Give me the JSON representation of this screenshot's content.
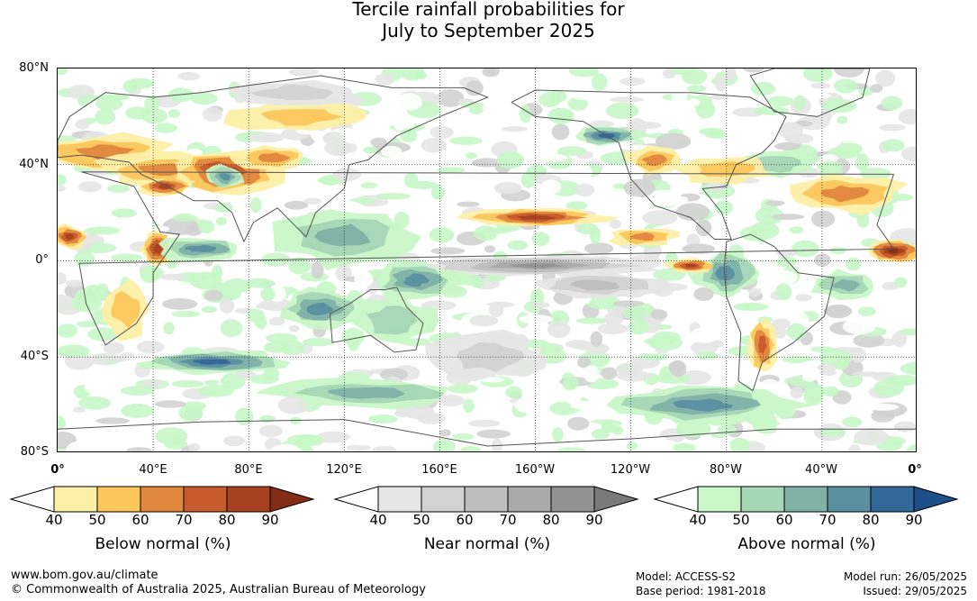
{
  "title": {
    "line1": "Tercile rainfall probabilities for",
    "line2": "July to September 2025"
  },
  "map": {
    "lat_labels": [
      "80°N",
      "40°N",
      "0°",
      "40°S",
      "80°S"
    ],
    "lon_labels": [
      "0°",
      "40°E",
      "80°E",
      "120°E",
      "160°E",
      "160°W",
      "120°W",
      "80°W",
      "40°W",
      "0°"
    ],
    "colors": {
      "below": [
        "#fdefa6",
        "#fcc65d",
        "#e0883e",
        "#c85b2b",
        "#a7411f",
        "#842d16"
      ],
      "near": [
        "#e6e6e6",
        "#d2d2d2",
        "#bebebe",
        "#aaaaaa",
        "#929292",
        "#7a7a7a"
      ],
      "above": [
        "#c8f7c8",
        "#a5d6b5",
        "#7fb1a8",
        "#5a8fa0",
        "#336699",
        "#1f4f88"
      ],
      "coastline": "#555555",
      "grid": "#333333"
    }
  },
  "legends": [
    {
      "name": "below",
      "title": "Below normal (%)",
      "ticks": [
        "40",
        "50",
        "60",
        "70",
        "80",
        "90"
      ],
      "colors": [
        "#ffffff",
        "#fdefa6",
        "#fcc65d",
        "#e0883e",
        "#c85b2b",
        "#a7411f",
        "#842d16"
      ]
    },
    {
      "name": "near",
      "title": "Near normal (%)",
      "ticks": [
        "40",
        "50",
        "60",
        "70",
        "80",
        "90"
      ],
      "colors": [
        "#ffffff",
        "#e6e6e6",
        "#d2d2d2",
        "#bebebe",
        "#aaaaaa",
        "#929292",
        "#7a7a7a"
      ]
    },
    {
      "name": "above",
      "title": "Above normal (%)",
      "ticks": [
        "40",
        "50",
        "60",
        "70",
        "80",
        "90"
      ],
      "colors": [
        "#ffffff",
        "#c8f7c8",
        "#a5d6b5",
        "#7fb1a8",
        "#5a8fa0",
        "#336699",
        "#1f4f88"
      ]
    }
  ],
  "footer": {
    "website": "www.bom.gov.au/climate",
    "copyright": "© Commonwealth of Australia 2025, Australian Bureau of Meteorology",
    "model": "Model: ACCESS-S2",
    "base_period": "Base period: 1981-2018",
    "model_run": "Model run: 26/05/2025",
    "issued": "Issued: 29/05/2025"
  }
}
